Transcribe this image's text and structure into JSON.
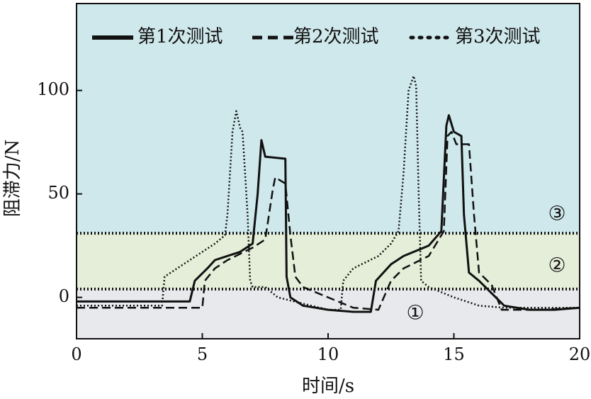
{
  "chart_data": {
    "type": "line",
    "xlabel": "时间/s",
    "ylabel": "阻滞力/N",
    "xlim": [
      0,
      20
    ],
    "ylim": [
      -20,
      142
    ],
    "x_ticks": [
      0,
      5,
      10,
      15,
      20
    ],
    "y_ticks": [
      0,
      50,
      100
    ],
    "legend_position": "top",
    "grid": false,
    "zones": [
      {
        "label": "①",
        "from": -20,
        "to": 4,
        "color": "#e8e9ec"
      },
      {
        "label": "②",
        "from": 4,
        "to": 31,
        "color": "#e5eed9"
      },
      {
        "label": "③",
        "from": 31,
        "to": 142,
        "color": "#cfe8ec"
      }
    ],
    "threshold_lines": [
      4,
      31
    ],
    "series": [
      {
        "name": "第1次测试",
        "style": "solid",
        "x": [
          0,
          4.5,
          4.7,
          5.2,
          5.5,
          6.0,
          6.5,
          7.0,
          7.2,
          7.35,
          7.5,
          8.3,
          8.35,
          8.5,
          9.0,
          9.5,
          10.0,
          11.0,
          11.7,
          11.9,
          12.5,
          13.0,
          14.0,
          14.5,
          14.7,
          14.8,
          15.0,
          15.3,
          15.4,
          15.6,
          16.0,
          17.0,
          18.0,
          19.0,
          20.0
        ],
        "y": [
          -2,
          -2,
          8,
          14,
          18,
          20,
          22,
          26,
          50,
          76,
          68,
          67,
          10,
          0,
          -4,
          -5,
          -6,
          -7,
          -7,
          8,
          16,
          20,
          25,
          32,
          83,
          88,
          80,
          78,
          40,
          12,
          8,
          -4,
          -6,
          -6,
          -5
        ]
      },
      {
        "name": "第2次测试",
        "style": "dashed",
        "x": [
          0,
          5.0,
          5.1,
          5.5,
          6.0,
          7.0,
          7.5,
          7.8,
          7.9,
          8.3,
          8.5,
          8.7,
          9.0,
          10.0,
          11.0,
          12.0,
          12.5,
          13.0,
          14.0,
          14.6,
          14.75,
          14.9,
          15.1,
          15.6,
          15.8,
          16.0,
          16.5,
          16.7,
          16.9,
          17.5,
          18.5,
          20.0
        ],
        "y": [
          -5,
          -5,
          8,
          14,
          18,
          24,
          28,
          52,
          58,
          55,
          30,
          10,
          5,
          0,
          -5,
          -6,
          8,
          14,
          20,
          32,
          78,
          80,
          74,
          74,
          40,
          12,
          6,
          0,
          -6,
          -6,
          -6,
          -5
        ]
      },
      {
        "name": "第3次测试",
        "style": "dotted",
        "x": [
          0,
          3.4,
          3.5,
          4.0,
          4.5,
          5.0,
          5.5,
          5.9,
          6.0,
          6.2,
          6.35,
          6.5,
          6.6,
          6.8,
          6.9,
          7.0,
          7.5,
          8.0,
          9.0,
          10.0,
          10.5,
          10.6,
          11.0,
          12.0,
          12.5,
          12.8,
          13.0,
          13.2,
          13.4,
          13.5,
          13.6,
          13.7,
          14.0,
          15.0,
          15.5,
          16.0,
          17.0,
          20.0
        ],
        "y": [
          -4,
          -4,
          10,
          14,
          18,
          22,
          26,
          30,
          40,
          80,
          90,
          82,
          80,
          40,
          8,
          5,
          5,
          0,
          -3,
          -6,
          -6,
          8,
          14,
          20,
          26,
          32,
          60,
          100,
          107,
          102,
          50,
          8,
          5,
          0,
          -2,
          -4,
          -5,
          -5
        ]
      }
    ]
  }
}
